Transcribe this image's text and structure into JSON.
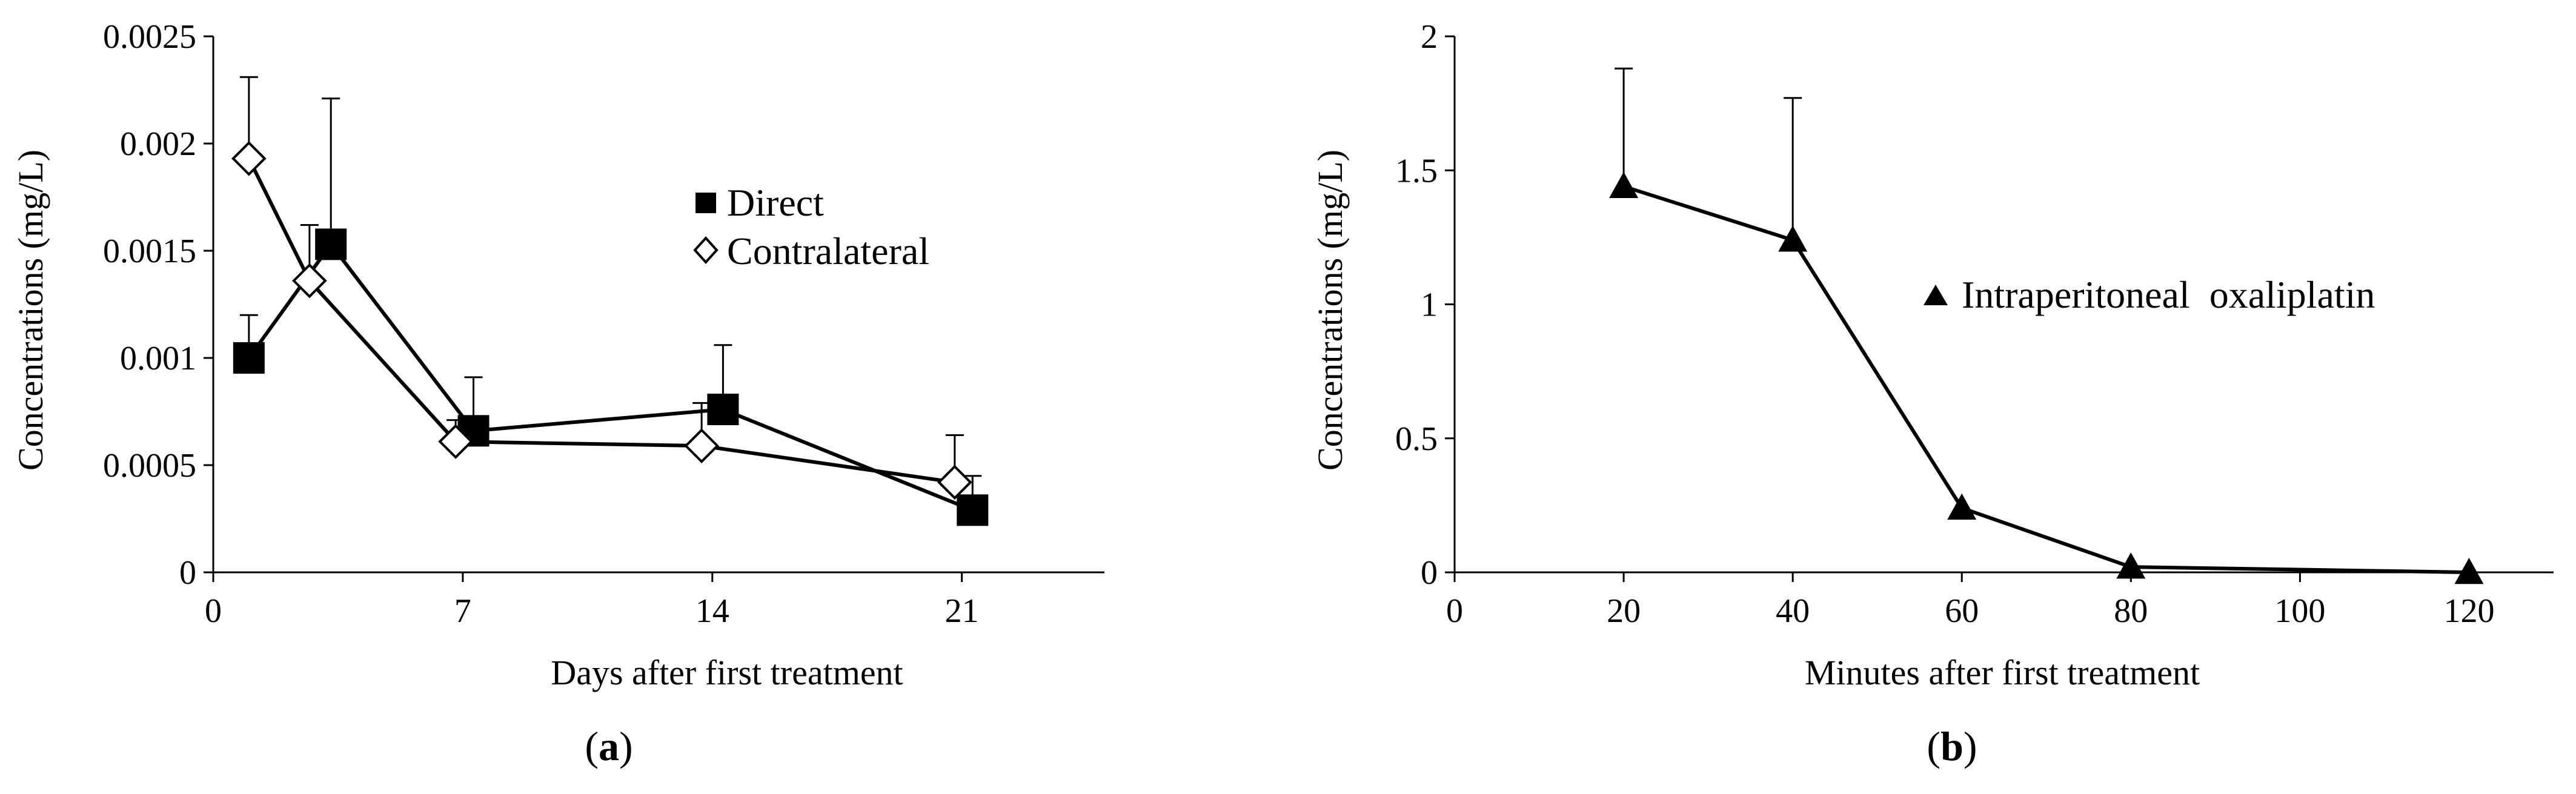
{
  "chart_data": [
    {
      "type": "line",
      "panel_label": {
        "open": "(",
        "letter": "a",
        "close": ")"
      },
      "title": "",
      "xlabel": "Days after first treatment",
      "ylabel": "Concentrations (mg/L)",
      "xlim": [
        0,
        25
      ],
      "ylim": [
        0,
        0.0025
      ],
      "xticks": [
        0,
        7,
        14,
        21
      ],
      "xtick_labels": [
        "0",
        "7",
        "14",
        "21"
      ],
      "yticks": [
        0,
        0.0005,
        0.001,
        0.0015,
        0.002,
        0.0025
      ],
      "ytick_labels": [
        "0",
        "0.0005",
        "0.001",
        "0.0015",
        "0.002",
        "0.0025"
      ],
      "grid": false,
      "legend_position": "center-right",
      "series": [
        {
          "name": "Direct",
          "marker": "filled-square",
          "x": [
            1,
            3.3,
            7.3,
            14.3,
            21.3
          ],
          "y": [
            0.001,
            0.00153,
            0.00066,
            0.00076,
            0.00029
          ],
          "error_plus": [
            0.0002,
            0.00068,
            0.00025,
            0.0003,
            0.00016
          ]
        },
        {
          "name": "Contralateral",
          "marker": "open-diamond",
          "x": [
            1,
            2.7,
            6.8,
            13.7,
            20.8
          ],
          "y": [
            0.00193,
            0.00136,
            0.00061,
            0.00059,
            0.00042
          ],
          "error_plus": [
            0.00038,
            0.00026,
            0.0001,
            0.0002,
            0.00022
          ]
        }
      ]
    },
    {
      "type": "line",
      "panel_label": {
        "open": "(",
        "letter": "b",
        "close": ")"
      },
      "title": "",
      "xlabel": "Minutes after first treatment",
      "ylabel": "Concentrations (mg/L)",
      "xlim": [
        0,
        130
      ],
      "ylim": [
        0,
        2
      ],
      "xticks": [
        0,
        20,
        40,
        60,
        80,
        100,
        120
      ],
      "xtick_labels": [
        "0",
        "20",
        "40",
        "60",
        "80",
        "100",
        "120"
      ],
      "yticks": [
        0,
        0.5,
        1,
        1.5,
        2
      ],
      "ytick_labels": [
        "0",
        "0.5",
        "1",
        "1.5",
        "2"
      ],
      "grid": false,
      "legend_position": "center-right",
      "series": [
        {
          "name": "Intraperitoneal  oxaliplatin",
          "marker": "filled-triangle",
          "x": [
            20,
            40,
            60,
            80,
            120
          ],
          "y": [
            1.44,
            1.24,
            0.24,
            0.02,
            0.0
          ],
          "error_plus": [
            0.44,
            0.53,
            0,
            0,
            0
          ]
        }
      ]
    }
  ]
}
